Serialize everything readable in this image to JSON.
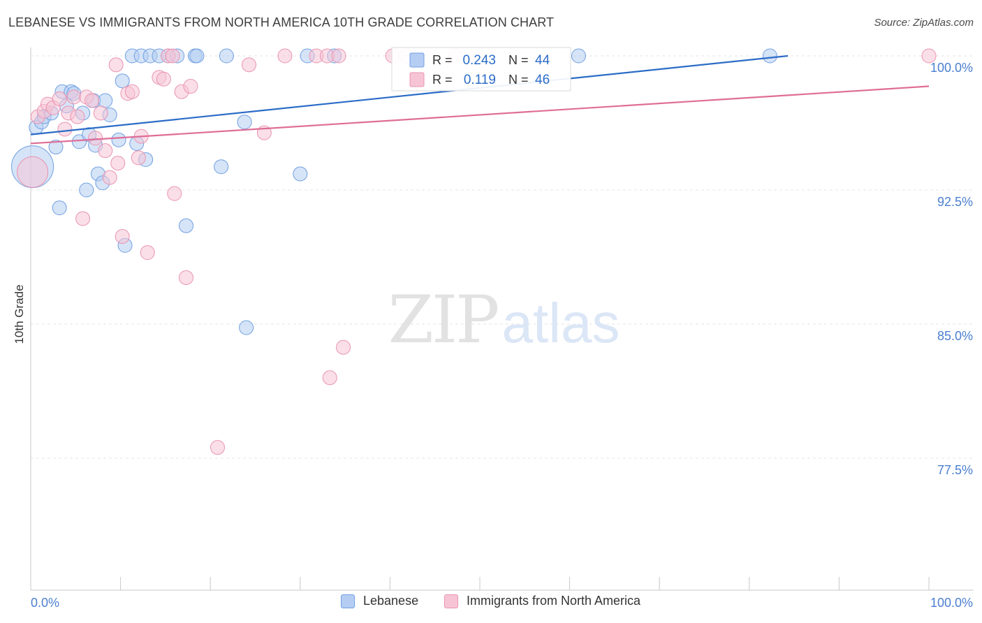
{
  "chart_data": {
    "type": "scatter",
    "title": "LEBANESE VS IMMIGRANTS FROM NORTH AMERICA 10TH GRADE CORRELATION CHART",
    "source": "Source: ZipAtlas.com",
    "ylabel": "10th Grade",
    "xlabel": "",
    "xlim": [
      0,
      100
    ],
    "ylim": [
      70.0,
      101.2
    ],
    "x_tick_labels": [
      "0.0%",
      "100.0%"
    ],
    "y_ticks": [
      {
        "value": 100.0,
        "label": "100.0%"
      },
      {
        "value": 92.5,
        "label": "92.5%"
      },
      {
        "value": 85.0,
        "label": "85.0%"
      },
      {
        "value": 77.5,
        "label": "77.5%"
      }
    ],
    "grid": true,
    "legend_placement": "top-center",
    "watermark": "ZIPatlas",
    "series": [
      {
        "name": "Lebanese",
        "color": "#6f9fe0",
        "fill": "#b5cdf3",
        "line_color": "#2b6cc7",
        "R": "0.243",
        "N": "44",
        "trend": {
          "x": [
            0,
            84.3
          ],
          "y": [
            95.6,
            100.0
          ]
        },
        "points": [
          [
            0.2,
            93.8,
            30
          ],
          [
            0.6,
            96.0,
            10
          ],
          [
            1.2,
            96.3,
            10
          ],
          [
            1.5,
            96.6,
            10
          ],
          [
            2.3,
            96.8,
            10
          ],
          [
            2.8,
            94.9,
            10
          ],
          [
            3.2,
            91.5,
            10
          ],
          [
            3.5,
            98.0,
            10
          ],
          [
            4.0,
            97.2,
            10
          ],
          [
            4.5,
            98.0,
            10
          ],
          [
            4.8,
            97.9,
            10
          ],
          [
            5.4,
            95.2,
            10
          ],
          [
            5.8,
            96.8,
            10
          ],
          [
            6.2,
            92.5,
            10
          ],
          [
            6.5,
            95.6,
            10
          ],
          [
            7.0,
            97.5,
            10
          ],
          [
            7.2,
            95.0,
            10
          ],
          [
            7.5,
            93.4,
            10
          ],
          [
            8.0,
            92.9,
            10
          ],
          [
            8.3,
            97.5,
            10
          ],
          [
            8.8,
            96.7,
            10
          ],
          [
            9.8,
            95.3,
            10
          ],
          [
            10.2,
            98.6,
            10
          ],
          [
            10.5,
            89.4,
            10
          ],
          [
            11.3,
            100.0,
            10
          ],
          [
            11.8,
            95.1,
            10
          ],
          [
            12.3,
            100.0,
            10
          ],
          [
            12.8,
            94.2,
            10
          ],
          [
            13.3,
            100.0,
            10
          ],
          [
            14.3,
            100.0,
            10
          ],
          [
            15.3,
            100.0,
            10
          ],
          [
            16.3,
            100.0,
            10
          ],
          [
            17.3,
            90.5,
            10
          ],
          [
            18.3,
            100.0,
            10
          ],
          [
            18.5,
            100.0,
            10
          ],
          [
            21.2,
            93.8,
            10
          ],
          [
            21.8,
            100.0,
            10
          ],
          [
            23.8,
            96.3,
            10
          ],
          [
            24.0,
            84.8,
            10
          ],
          [
            30.0,
            93.4,
            10
          ],
          [
            30.8,
            100.0,
            10
          ],
          [
            33.8,
            100.0,
            10
          ],
          [
            61.0,
            100.0,
            10
          ],
          [
            82.3,
            100.0,
            10
          ]
        ]
      },
      {
        "name": "Immigrants from North America",
        "color": "#ea93b0",
        "fill": "#f6c4d5",
        "line_color": "#df6d96",
        "R": "0.119",
        "N": "46",
        "trend": {
          "x": [
            0,
            100
          ],
          "y": [
            95.1,
            98.3
          ]
        },
        "points": [
          [
            0.2,
            93.5,
            22
          ],
          [
            0.8,
            96.6,
            10
          ],
          [
            1.5,
            96.9,
            10
          ],
          [
            1.9,
            97.3,
            10
          ],
          [
            2.5,
            97.1,
            10
          ],
          [
            3.2,
            97.6,
            10
          ],
          [
            3.8,
            95.9,
            10
          ],
          [
            4.2,
            96.8,
            10
          ],
          [
            4.8,
            97.7,
            10
          ],
          [
            5.2,
            96.6,
            10
          ],
          [
            5.8,
            90.9,
            10
          ],
          [
            6.2,
            97.7,
            10
          ],
          [
            6.8,
            97.5,
            10
          ],
          [
            7.2,
            95.4,
            10
          ],
          [
            7.8,
            96.8,
            10
          ],
          [
            8.3,
            94.7,
            10
          ],
          [
            8.8,
            93.2,
            10
          ],
          [
            9.5,
            99.5,
            10
          ],
          [
            9.7,
            94.0,
            10
          ],
          [
            10.2,
            89.9,
            10
          ],
          [
            10.8,
            97.9,
            10
          ],
          [
            11.3,
            98.0,
            10
          ],
          [
            12.0,
            94.3,
            10
          ],
          [
            12.3,
            95.5,
            10
          ],
          [
            13.0,
            89.0,
            10
          ],
          [
            14.3,
            98.8,
            10
          ],
          [
            14.8,
            98.7,
            10
          ],
          [
            15.3,
            100.0,
            10
          ],
          [
            15.8,
            100.0,
            10
          ],
          [
            16.0,
            92.3,
            10
          ],
          [
            16.8,
            98.0,
            10
          ],
          [
            17.3,
            87.6,
            10
          ],
          [
            17.8,
            98.3,
            10
          ],
          [
            20.8,
            78.1,
            10
          ],
          [
            24.3,
            99.5,
            10
          ],
          [
            26.0,
            95.7,
            10
          ],
          [
            28.3,
            100.0,
            10
          ],
          [
            31.8,
            100.0,
            10
          ],
          [
            33.0,
            100.0,
            10
          ],
          [
            33.3,
            82.0,
            10
          ],
          [
            34.3,
            100.0,
            10
          ],
          [
            34.8,
            83.7,
            10
          ],
          [
            40.3,
            100.0,
            10
          ],
          [
            41.8,
            100.0,
            10
          ],
          [
            47.3,
            100.0,
            10
          ],
          [
            100.0,
            100.0,
            10
          ]
        ]
      }
    ]
  }
}
